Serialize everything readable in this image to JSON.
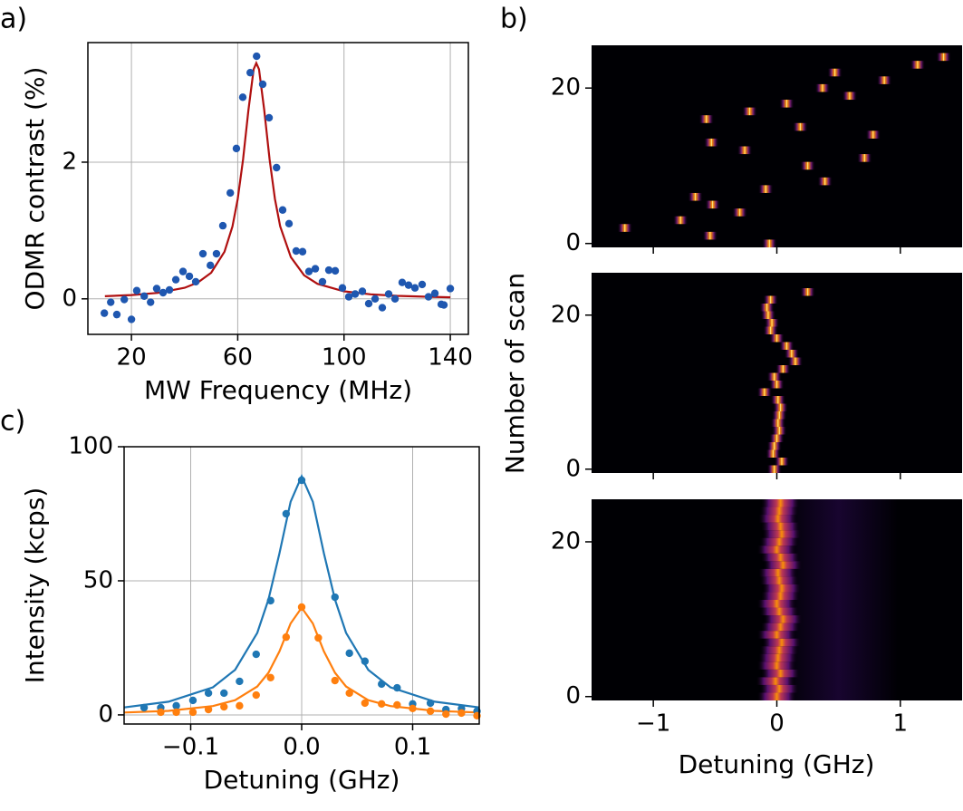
{
  "chart_data": [
    {
      "type": "scatter",
      "panel_label": "a)",
      "xlabel": "MW Frequency (MHz)",
      "ylabel": "ODMR contrast (%)",
      "xlim": [
        3.6,
        146.8
      ],
      "ylim": [
        -0.52,
        3.75
      ],
      "xticks": [
        20,
        60,
        100,
        140
      ],
      "yticks": [
        0,
        2
      ],
      "grid": true,
      "points": [
        {
          "color": "#1f57b0",
          "x": [
            9.8,
            12.2,
            14.5,
            17.3,
            20,
            22,
            24.8,
            27.2,
            29.5,
            31.9,
            34.3,
            36.7,
            39.4,
            41.8,
            44.2,
            46.9,
            49.7,
            52,
            54.4,
            57.2,
            59.5,
            61.9,
            64.7,
            67.1,
            69.4,
            71.8,
            74.6,
            76.9,
            79.3,
            82,
            84.4,
            86.8,
            89.2,
            91.9,
            94.3,
            96.7,
            99.4,
            101.8,
            104.2,
            106.9,
            109.3,
            111.7,
            114.4,
            116.8,
            119.2,
            121.9,
            124.3,
            126.7,
            129.4,
            131.8,
            134.2,
            136.6,
            137.6,
            140
          ],
          "values": [
            -0.21,
            -0.05,
            -0.23,
            -0.01,
            -0.3,
            0.12,
            0.04,
            -0.05,
            0.15,
            0.09,
            0.13,
            0.28,
            0.4,
            0.33,
            0.25,
            0.66,
            0.49,
            0.66,
            1.07,
            1.55,
            2.2,
            2.95,
            3.31,
            3.55,
            3.14,
            2.65,
            1.92,
            1.3,
            1.1,
            0.7,
            0.69,
            0.4,
            0.44,
            0.25,
            0.42,
            0.41,
            0.16,
            0.03,
            0.07,
            0.11,
            -0.07,
            0,
            -0.13,
            0.07,
            0,
            0.24,
            0.2,
            0.16,
            0.21,
            0.03,
            0.08,
            -0.08,
            -0.09,
            0.15
          ]
        }
      ],
      "fits": [
        {
          "color": "#b01010",
          "x": [
            10,
            20,
            30,
            40,
            45,
            50,
            55,
            58,
            60,
            62,
            64,
            66,
            67,
            68,
            70,
            72,
            74,
            76,
            80,
            85,
            90,
            100,
            110,
            120,
            130,
            140
          ],
          "values": [
            0.038,
            0.055,
            0.088,
            0.162,
            0.239,
            0.382,
            0.69,
            1.06,
            1.46,
            2.04,
            2.76,
            3.36,
            3.45,
            3.36,
            2.76,
            2.04,
            1.46,
            1.06,
            0.61,
            0.345,
            0.22,
            0.11,
            0.066,
            0.044,
            0.031,
            0.023
          ]
        }
      ]
    },
    {
      "type": "heatmap",
      "panel_label": "b)",
      "xlabel": "Detuning (GHz)",
      "ylabel": "Number of scan",
      "xlim": [
        -1.5,
        1.5
      ],
      "xticks": [
        {
          "value": -1,
          "label": "−1"
        },
        0,
        1
      ],
      "panels": [
        {
          "ylim": [
            -0.5,
            25.5
          ],
          "yticks": [
            0,
            20
          ],
          "peak_width": 0.06,
          "peaks": [
            -0.06,
            -0.54,
            -1.23,
            -0.78,
            -0.3,
            -0.52,
            -0.66,
            -0.09,
            0.39,
            null,
            0.25,
            0.71,
            -0.26,
            -0.53,
            0.78,
            0.19,
            -0.57,
            -0.22,
            0.08,
            0.59,
            0.37,
            0.87,
            0.47,
            1.14,
            1.35
          ]
        },
        {
          "ylim": [
            -0.5,
            25.5
          ],
          "yticks": [
            0,
            20
          ],
          "peak_width": 0.06,
          "peaks": [
            -0.02,
            0.04,
            -0.03,
            -0.02,
            0,
            0.02,
            0.01,
            0.02,
            0.03,
            0.01,
            -0.1,
            0,
            -0.02,
            0.05,
            0.15,
            0.12,
            0.08,
            0,
            -0.05,
            -0.04,
            -0.07,
            -0.08,
            -0.05,
            0.25
          ]
        },
        {
          "ylim": [
            -0.5,
            25.5
          ],
          "yticks": [
            0,
            20
          ],
          "peak_width": 0.16,
          "sideband": 0.5,
          "peaks": [
            0,
            0.02,
            -0.01,
            0.03,
            0,
            0.01,
            0.02,
            0.04,
            0,
            0.03,
            0.05,
            0.02,
            0,
            0.03,
            0.04,
            0.02,
            0.01,
            0.05,
            0.03,
            0,
            0.02,
            0.04,
            0.03,
            0.01,
            0.02,
            0.03
          ]
        }
      ]
    },
    {
      "type": "scatter",
      "panel_label": "c)",
      "xlabel": "Detuning (GHz)",
      "ylabel": "Intensity (kcps)",
      "xlim": [
        -0.16,
        0.16
      ],
      "ylim": [
        -3.4,
        100
      ],
      "xticks": [
        {
          "value": -0.1,
          "label": "−0.1"
        },
        {
          "value": 0,
          "label": "0.0"
        },
        0.1
      ],
      "yticks": [
        0,
        50,
        100
      ],
      "grid": true,
      "points": [
        {
          "color": "#1f77b4",
          "x": [
            -0.142,
            -0.127,
            -0.113,
            -0.098,
            -0.084,
            -0.07,
            -0.056,
            -0.041,
            -0.028,
            -0.014,
            0,
            0.03,
            0.043,
            0.057,
            0.072,
            0.086,
            0.1,
            0.116,
            0.13,
            0.144,
            0.158
          ],
          "values": [
            2.7,
            2.7,
            3.4,
            5.4,
            8.1,
            8.1,
            12.5,
            22.6,
            42.6,
            75,
            87.5,
            43.9,
            23,
            20,
            11.5,
            10.1,
            4.1,
            4.4,
            2,
            2.4,
            1.4
          ]
        },
        {
          "color": "#ff7f0e",
          "x": [
            -0.127,
            -0.113,
            -0.098,
            -0.084,
            -0.07,
            -0.056,
            -0.041,
            -0.028,
            -0.014,
            0,
            0.015,
            0.03,
            0.043,
            0.057,
            0.072,
            0.086,
            0.1,
            0.116,
            0.13,
            0.144,
            0.158
          ],
          "values": [
            1,
            1,
            1,
            2,
            3,
            3.4,
            7.4,
            13.9,
            29,
            40.2,
            28.7,
            12.8,
            8.1,
            4.4,
            4.1,
            3.7,
            2.4,
            1.4,
            0.3,
            0.7,
            -0.3
          ]
        }
      ],
      "fits": [
        {
          "color": "#1f77b4",
          "x": [
            -0.16,
            -0.12,
            -0.08,
            -0.06,
            -0.04,
            -0.03,
            -0.02,
            -0.01,
            0,
            0.01,
            0.02,
            0.03,
            0.04,
            0.06,
            0.08,
            0.12,
            0.16
          ],
          "values": [
            2.8,
            4.9,
            10.3,
            16.8,
            30.6,
            43,
            60.3,
            79.5,
            89,
            79.5,
            60.3,
            43,
            30.6,
            16.8,
            10.3,
            4.9,
            2.8
          ]
        },
        {
          "color": "#ff7f0e",
          "x": [
            -0.16,
            -0.12,
            -0.08,
            -0.06,
            -0.04,
            -0.03,
            -0.02,
            -0.01,
            0,
            0.01,
            0.02,
            0.03,
            0.04,
            0.06,
            0.08,
            0.12,
            0.16
          ],
          "values": [
            0.9,
            1.5,
            3.3,
            5.5,
            10.6,
            15.7,
            23.7,
            34.1,
            40,
            34.1,
            23.7,
            15.7,
            10.6,
            5.5,
            3.3,
            1.5,
            0.9
          ]
        }
      ]
    }
  ]
}
